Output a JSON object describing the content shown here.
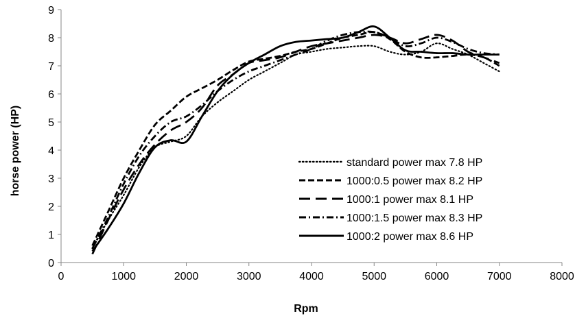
{
  "chart_data": {
    "type": "line",
    "title": "",
    "xlabel": "Rpm",
    "ylabel": "horse power (HP)",
    "xlim": [
      0,
      8000
    ],
    "ylim": [
      0,
      9
    ],
    "x_ticks": [
      "0",
      "1000",
      "2000",
      "3000",
      "4000",
      "5000",
      "6000",
      "7000",
      "8000"
    ],
    "y_ticks": [
      "0",
      "1",
      "2",
      "3",
      "4",
      "5",
      "6",
      "7",
      "8",
      "9"
    ],
    "grid": false,
    "legend_position": "bottom-right",
    "series": [
      {
        "name": "standard power max 7.8 HP",
        "dash": "dotted",
        "x": [
          500,
          750,
          1000,
          1250,
          1500,
          1750,
          2000,
          2250,
          2500,
          2750,
          3000,
          3250,
          3500,
          3750,
          4000,
          4250,
          4500,
          4750,
          5000,
          5250,
          5500,
          5750,
          6000,
          6250,
          6500,
          6750,
          7000
        ],
        "y": [
          0.5,
          1.5,
          2.4,
          3.4,
          4.1,
          4.3,
          4.5,
          5.2,
          5.7,
          6.1,
          6.5,
          6.8,
          7.1,
          7.4,
          7.5,
          7.6,
          7.65,
          7.7,
          7.7,
          7.5,
          7.4,
          7.5,
          7.8,
          7.6,
          7.4,
          7.1,
          6.8
        ]
      },
      {
        "name": "1000:0.5 power max 8.2 HP",
        "dash": "short-dash",
        "x": [
          500,
          750,
          1000,
          1250,
          1500,
          1750,
          2000,
          2250,
          2500,
          2750,
          3000,
          3250,
          3500,
          3750,
          4000,
          4250,
          4500,
          4750,
          5000,
          5250,
          5500,
          5750,
          6000,
          6250,
          6500,
          6750,
          7000
        ],
        "y": [
          0.6,
          1.8,
          3.0,
          4.0,
          4.9,
          5.4,
          5.9,
          6.2,
          6.5,
          6.85,
          7.15,
          7.25,
          7.35,
          7.5,
          7.6,
          7.8,
          8.0,
          8.1,
          8.2,
          7.95,
          7.5,
          7.3,
          7.3,
          7.35,
          7.4,
          7.3,
          7.0
        ]
      },
      {
        "name": "1000:1 power max 8.1 HP",
        "dash": "long-dash",
        "x": [
          500,
          750,
          1000,
          1250,
          1500,
          1750,
          2000,
          2250,
          2500,
          2750,
          3000,
          3250,
          3500,
          3750,
          4000,
          4250,
          4500,
          4750,
          5000,
          5250,
          5500,
          5750,
          6000,
          6250,
          6500,
          6750,
          7000
        ],
        "y": [
          0.3,
          1.5,
          2.6,
          3.5,
          4.2,
          4.7,
          5.0,
          5.5,
          6.3,
          6.7,
          7.1,
          7.2,
          7.3,
          7.5,
          7.7,
          7.8,
          7.9,
          8.0,
          8.1,
          8.0,
          7.8,
          7.95,
          8.1,
          7.9,
          7.5,
          7.3,
          7.1
        ]
      },
      {
        "name": "1000:1.5 power max 8.3 HP",
        "dash": "dash-dot",
        "x": [
          500,
          750,
          1000,
          1250,
          1500,
          1750,
          2000,
          2250,
          2500,
          2750,
          3000,
          3250,
          3500,
          3750,
          4000,
          4250,
          4500,
          4750,
          5000,
          5250,
          5500,
          5750,
          6000,
          6250,
          6500,
          6750,
          7000
        ],
        "y": [
          0.5,
          1.6,
          2.8,
          3.8,
          4.5,
          5.0,
          5.2,
          5.6,
          6.1,
          6.5,
          6.8,
          7.0,
          7.2,
          7.4,
          7.6,
          7.9,
          8.1,
          8.2,
          8.2,
          8.0,
          7.7,
          7.8,
          8.0,
          7.85,
          7.6,
          7.45,
          7.4
        ]
      },
      {
        "name": "1000:2 power max 8.6 HP",
        "dash": "solid",
        "x": [
          500,
          750,
          1000,
          1250,
          1500,
          1750,
          2000,
          2250,
          2500,
          2750,
          3000,
          3250,
          3500,
          3750,
          4000,
          4250,
          4500,
          4750,
          5000,
          5250,
          5500,
          5750,
          6000,
          6250,
          6500,
          6750,
          7000
        ],
        "y": [
          0.4,
          1.2,
          2.1,
          3.2,
          4.1,
          4.35,
          4.3,
          5.2,
          6.1,
          6.7,
          7.1,
          7.4,
          7.7,
          7.85,
          7.9,
          7.95,
          8.0,
          8.2,
          8.4,
          8.0,
          7.55,
          7.5,
          7.45,
          7.45,
          7.4,
          7.4,
          7.4
        ]
      }
    ]
  }
}
